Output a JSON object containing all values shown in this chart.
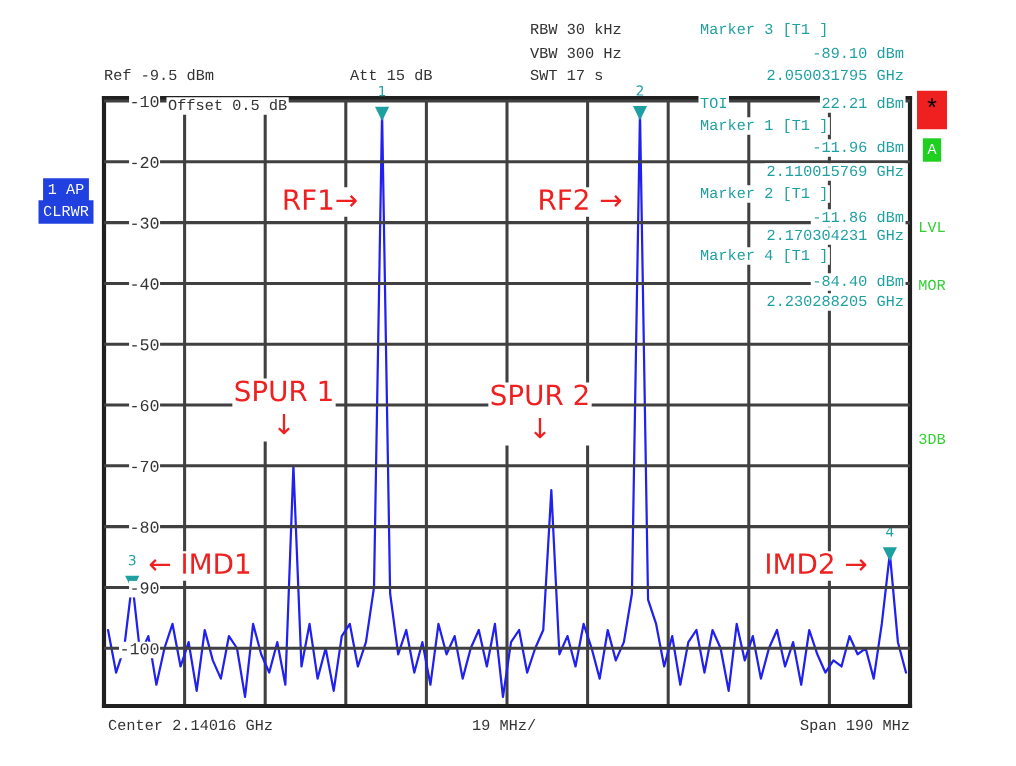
{
  "chart_data": {
    "type": "line",
    "categories": [
      null,
      null,
      null,
      null,
      null,
      null,
      null,
      null,
      null,
      null,
      null,
      null,
      null,
      null,
      null,
      null,
      null,
      null,
      null,
      null,
      null,
      null,
      null,
      null,
      null,
      null,
      null,
      null,
      null,
      null,
      null,
      null,
      null,
      null,
      null,
      null,
      null,
      null,
      null,
      null,
      null,
      null,
      null,
      null,
      null,
      null,
      null,
      null,
      null,
      null,
      null,
      null,
      null,
      null,
      null,
      null,
      null,
      null,
      null,
      null,
      null,
      null,
      null,
      null,
      null,
      null,
      null,
      null,
      null,
      null,
      null,
      null,
      null,
      null,
      null,
      null,
      null,
      null,
      null,
      null,
      null,
      null,
      null,
      null,
      null,
      null,
      null,
      null,
      null,
      null,
      null,
      null,
      null,
      null,
      null,
      null,
      null,
      null,
      null,
      null
    ],
    "series": [
      {
        "color": "#2020f0",
        "values": [
          -97,
          -104,
          -100,
          -89.1,
          -101,
          -98,
          -106,
          -100,
          -96,
          -103,
          -99,
          -107,
          -97,
          -102,
          -105,
          -98,
          -100,
          -108,
          -96,
          -101,
          -104,
          -99,
          -106,
          -70,
          -103,
          -96,
          -105,
          -100,
          -107,
          -98,
          -96,
          -103,
          -99,
          -90,
          -11.96,
          -91,
          -101,
          -97,
          -104,
          -99,
          -106,
          -96,
          -101,
          -98,
          -105,
          -100,
          -97,
          -103,
          -96,
          -108,
          -99,
          -97,
          -104,
          -100,
          -97,
          -74,
          -101,
          -98,
          -103,
          -96,
          -100,
          -105,
          -97,
          -102,
          -99,
          -91,
          -11.86,
          -92,
          -96,
          -103,
          -98,
          -106,
          -99,
          -97,
          -104,
          -97,
          -100,
          -107,
          -96,
          -102,
          -98,
          -105,
          -100,
          -97,
          -103,
          -99,
          -106,
          -97,
          -101,
          -104,
          -102,
          -103,
          -98,
          -101,
          -100,
          -105,
          -96,
          -84.4,
          -99,
          -104
        ]
      }
    ],
    "ylim": [
      -109.5,
      -9.5
    ],
    "yticks": [
      -10,
      -20,
      -30,
      -40,
      -50,
      -60,
      -70,
      -80,
      -90,
      -100
    ],
    "tick_labels": "y",
    "grid": true,
    "annotations": [
      "Ref -9.5 dBm",
      "Att 15 dB",
      "RBW 30 kHz",
      "VBW 300 Hz",
      "SWT 17 s",
      "Offset 0.5 dB",
      "Marker 3 [T1 ]",
      "-89.10 dBm",
      "2.050031795 GHz",
      "TOI",
      "22.21 dBm",
      "Marker 1 [T1 ]",
      "-11.96 dBm",
      "2.110015769 GHz",
      "Marker 2 [T1 ]",
      "-11.86 dBm",
      "2.170304231 GHz",
      "Marker 4 [T1 ]",
      "-84.40 dBm",
      "2.230288205 GHz",
      "1 AP",
      "CLRWR",
      "*",
      "A",
      "LVL",
      "MOR",
      "3DB",
      "Center 2.14016 GHz",
      "19 MHz/",
      "Span 190 MHz",
      "RF1→",
      "RF2 →",
      "SPUR 1\n↓",
      "SPUR 2\n↓",
      "← IMD1",
      "IMD2 →",
      {
        "text": "1",
        "y": -11.96
      },
      {
        "text": "2",
        "y": -11.86
      },
      {
        "text": "3",
        "y": -89.1
      },
      {
        "text": "4",
        "y": -84.4
      }
    ]
  }
}
